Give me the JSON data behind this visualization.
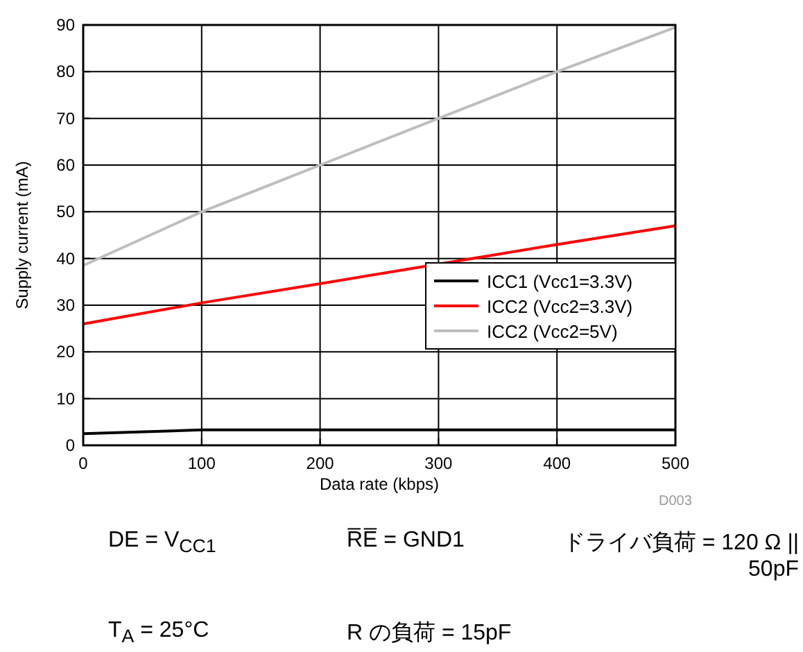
{
  "chart_data": {
    "type": "line",
    "xlabel": "Data rate (kbps)",
    "ylabel": "Supply current (mA)",
    "x": [
      0,
      100,
      200,
      300,
      400,
      500
    ],
    "series": [
      {
        "name": "ICC1 (Vcc1=3.3V)",
        "color": "#000000",
        "values": [
          2.5,
          3.3,
          3.3,
          3.3,
          3.3,
          3.3
        ]
      },
      {
        "name": "ICC2 (Vcc2=3.3V)",
        "color": "#ff0000",
        "values": [
          26,
          30.5,
          34.6,
          38.8,
          43,
          47
        ]
      },
      {
        "name": "ICC2 (Vcc2=5V)",
        "color": "#bebebe",
        "values": [
          38.5,
          50,
          60,
          70,
          80,
          89.5
        ]
      }
    ],
    "xlim": [
      0,
      500
    ],
    "xticks": [
      0,
      100,
      200,
      300,
      400,
      500
    ],
    "ylim": [
      0,
      90
    ],
    "yticks": [
      0,
      10,
      20,
      30,
      40,
      50,
      60,
      70,
      80,
      90
    ],
    "grid": true,
    "legend": "right",
    "marker": "none",
    "line_style": "solid",
    "annotations": [
      "D003",
      "DE = V$_{CC1}$",
      "R̅E̅ = GND1",
      "ドライバ負荷 = 120 Ω || 50pF",
      "T$_{A}$ = 25°C",
      "R の負荷 = 15pF"
    ]
  }
}
